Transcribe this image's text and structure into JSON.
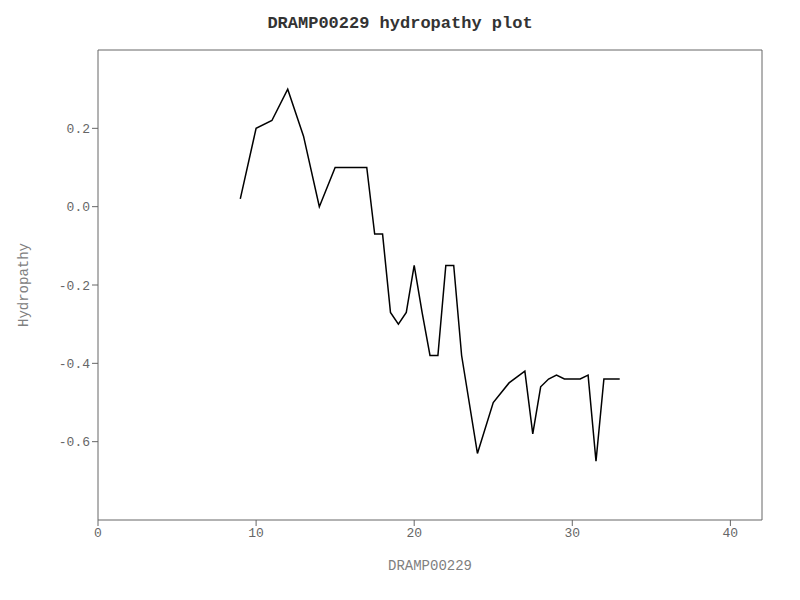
{
  "chart_data": {
    "type": "line",
    "title": "DRAMP00229 hydropathy plot",
    "xlabel": "DRAMP00229",
    "ylabel": "Hydropathy",
    "x": [
      9.0,
      10.0,
      11.0,
      12.0,
      13.0,
      14.0,
      15.0,
      16.0,
      17.0,
      17.5,
      18.0,
      18.5,
      19.0,
      19.5,
      20.0,
      20.5,
      21.0,
      21.5,
      22.0,
      22.5,
      23.0,
      24.0,
      25.0,
      26.0,
      27.0,
      27.5,
      28.0,
      28.5,
      29.0,
      29.5,
      30.0,
      30.5,
      31.0,
      31.5,
      32.0,
      32.5,
      33.0
    ],
    "values": [
      0.02,
      0.2,
      0.22,
      0.3,
      0.18,
      0.0,
      0.1,
      0.1,
      0.1,
      -0.07,
      -0.07,
      -0.27,
      -0.3,
      -0.27,
      -0.15,
      -0.27,
      -0.38,
      -0.38,
      -0.15,
      -0.15,
      -0.38,
      -0.63,
      -0.5,
      -0.45,
      -0.42,
      -0.58,
      -0.46,
      -0.44,
      -0.43,
      -0.44,
      -0.44,
      -0.44,
      -0.43,
      -0.65,
      -0.44,
      -0.44,
      -0.44
    ],
    "color": "#000000",
    "xlim": [
      0,
      42
    ],
    "ylim": [
      -0.8,
      0.4
    ],
    "xticks": [
      0,
      10,
      20,
      30,
      40
    ],
    "yticks": [
      0.2,
      {
        "value": 0.0,
        "label": "0.0"
      },
      -0.2,
      -0.4,
      -0.6
    ],
    "grid": false
  }
}
